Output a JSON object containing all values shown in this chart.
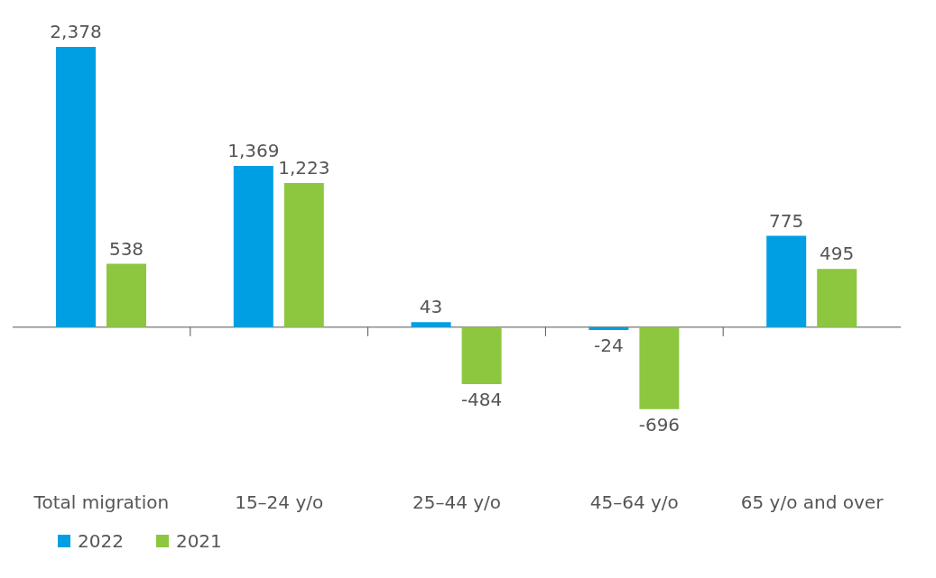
{
  "chart_data": {
    "type": "bar",
    "categories": [
      "Total migration",
      "15–24 y/o",
      "25–44 y/o",
      "45–64 y/o",
      "65 y/o and over"
    ],
    "series": [
      {
        "name": "2022",
        "color": "#009fe3",
        "values": [
          2378,
          1369,
          43,
          -24,
          775
        ],
        "value_labels": [
          "2,378",
          "1,369",
          "43",
          "-24",
          "775"
        ]
      },
      {
        "name": "2021",
        "color": "#8dc63f",
        "values": [
          538,
          1223,
          -484,
          -696,
          495
        ],
        "value_labels": [
          "538",
          "1,223",
          "-484",
          "-696",
          "495"
        ]
      }
    ],
    "legend": "bottom left"
  }
}
